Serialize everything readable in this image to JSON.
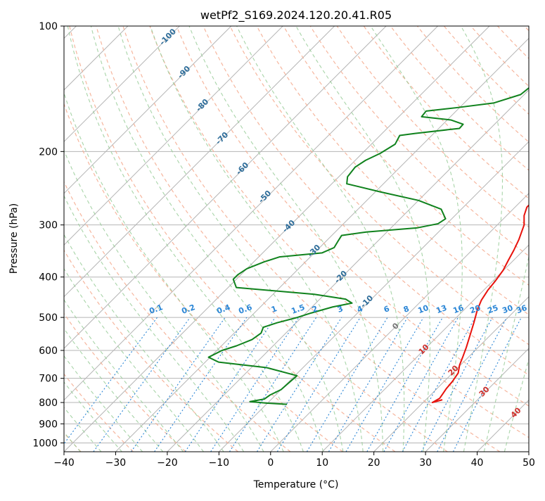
{
  "chart_data": {
    "type": "line",
    "title": "wetPf2_S169.2024.120.20.41.R05",
    "xlabel": "Temperature (°C)",
    "ylabel": "Pressure (hPa)",
    "xlim": [
      -40,
      50
    ],
    "ylim": [
      1050,
      100
    ],
    "y_scale": "log",
    "grid": true,
    "x_ticks": [
      -40,
      -30,
      -20,
      -10,
      0,
      10,
      20,
      30,
      40,
      50
    ],
    "y_ticks": [
      100,
      200,
      300,
      400,
      500,
      600,
      700,
      800,
      900,
      1000
    ],
    "series": [
      {
        "role": "temperature",
        "color": "#e8120c",
        "points": [
          [
            23.2,
            788
          ],
          [
            21.8,
            800
          ],
          [
            22.4,
            782
          ],
          [
            22.1,
            760
          ],
          [
            21.8,
            740
          ],
          [
            21.6,
            712
          ],
          [
            21.1,
            680
          ],
          [
            19.8,
            650
          ],
          [
            18.8,
            620
          ],
          [
            17.7,
            590
          ],
          [
            16.0,
            550
          ],
          [
            14.4,
            515
          ],
          [
            12.6,
            480
          ],
          [
            11.5,
            455
          ],
          [
            10.8,
            430
          ],
          [
            10.5,
            410
          ],
          [
            9.9,
            385
          ],
          [
            9.0,
            365
          ],
          [
            8.1,
            345
          ],
          [
            7.0,
            325
          ],
          [
            5.2,
            300
          ],
          [
            3.4,
            285
          ],
          [
            2.3,
            272
          ],
          [
            2.3,
            260
          ],
          [
            3.0,
            248
          ],
          [
            4.0,
            236
          ],
          [
            5.7,
            222
          ],
          [
            7.8,
            210
          ],
          [
            9.4,
            200
          ],
          [
            10.1,
            190
          ],
          [
            10.6,
            180
          ],
          [
            11.5,
            172
          ],
          [
            12.8,
            162
          ],
          [
            13.2,
            150
          ],
          [
            13.3,
            136
          ],
          [
            13.4,
            122
          ],
          [
            14.1,
            110
          ],
          [
            14.9,
            100
          ]
        ]
      },
      {
        "role": "dewpoint",
        "color": "#10821d",
        "points": [
          [
            -6.0,
            808
          ],
          [
            -10.0,
            803
          ],
          [
            -13.7,
            796
          ],
          [
            -11.4,
            785
          ],
          [
            -11.1,
            768
          ],
          [
            -10.0,
            745
          ],
          [
            -9.8,
            716
          ],
          [
            -9.6,
            690
          ],
          [
            -17.0,
            660
          ],
          [
            -27.4,
            640
          ],
          [
            -30.3,
            623
          ],
          [
            -29.0,
            600
          ],
          [
            -27.1,
            585
          ],
          [
            -25.3,
            565
          ],
          [
            -24.8,
            545
          ],
          [
            -25.5,
            528
          ],
          [
            -23.7,
            515
          ],
          [
            -20.8,
            500
          ],
          [
            -19.0,
            488
          ],
          [
            -16.0,
            472
          ],
          [
            -13.0,
            462
          ],
          [
            -15.0,
            452
          ],
          [
            -22.0,
            440
          ],
          [
            -38.4,
            424
          ],
          [
            -40.6,
            405
          ],
          [
            -40.6,
            395
          ],
          [
            -40.0,
            382
          ],
          [
            -38.0,
            368
          ],
          [
            -36.0,
            358
          ],
          [
            -28.5,
            350
          ],
          [
            -27.2,
            340
          ],
          [
            -27.7,
            328
          ],
          [
            -28.1,
            318
          ],
          [
            -24.0,
            312
          ],
          [
            -15.0,
            305
          ],
          [
            -11.7,
            298
          ],
          [
            -11.2,
            290
          ],
          [
            -13.9,
            275
          ],
          [
            -20.0,
            262
          ],
          [
            -29.0,
            250
          ],
          [
            -37.1,
            239
          ],
          [
            -38.3,
            230
          ],
          [
            -38.7,
            218
          ],
          [
            -38.0,
            210
          ],
          [
            -36.5,
            202
          ],
          [
            -35.4,
            192
          ],
          [
            -36.2,
            183
          ],
          [
            -33.6,
            181
          ],
          [
            -26.0,
            176
          ],
          [
            -26.1,
            172
          ],
          [
            -29.3,
            168
          ],
          [
            -35.6,
            165
          ],
          [
            -35.8,
            160
          ],
          [
            -30.6,
            157
          ],
          [
            -24.3,
            153
          ],
          [
            -20.7,
            146
          ],
          [
            -20.1,
            136
          ],
          [
            -19.5,
            127
          ],
          [
            -20.3,
            118
          ],
          [
            -19.8,
            110
          ],
          [
            -18.6,
            104
          ],
          [
            -17.4,
            100
          ]
        ]
      }
    ],
    "annotations": {
      "dry_adiabat_labels": [
        "-100",
        "-90",
        "-80",
        "-70",
        "-60",
        "-50",
        "-40",
        "-30",
        "-20",
        "-10"
      ],
      "mixing_ratio_labels": [
        "0.1",
        "0.2",
        "0.4",
        "0.6",
        "1",
        "1.5",
        "2",
        "3",
        "4",
        "6",
        "8",
        "10",
        "13",
        "16",
        "20",
        "25",
        "30",
        "36"
      ],
      "moist_adiabat_labels": [
        "0",
        "10",
        "20",
        "30",
        "40"
      ]
    },
    "colors": {
      "isotherm_grid": "#b5b5b5",
      "dry_adiabat": "#f5ae93",
      "moist_adiabat": "#99cc99",
      "mixing_ratio": "#2b86d6",
      "saturation_curve": "#dcc49a",
      "dry_label": "#2e6d9a",
      "mixing_label": "#2b86d6",
      "moist_label": "#d0322e",
      "moist_zero_label": "#777777"
    }
  }
}
